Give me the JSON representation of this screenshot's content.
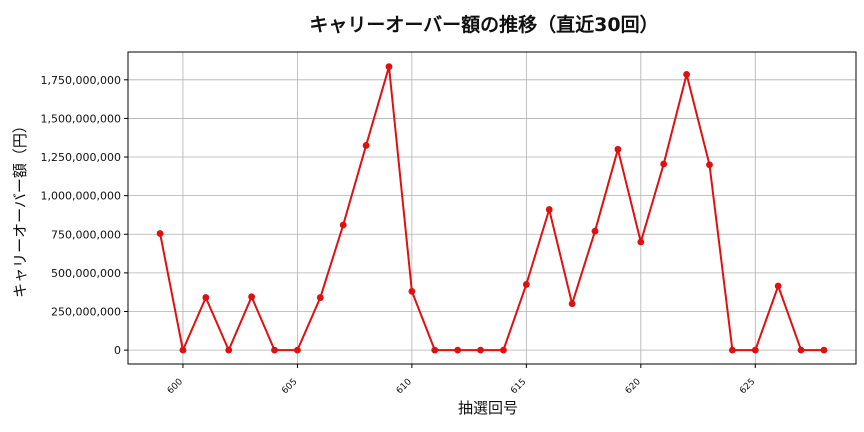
{
  "chart_data": {
    "type": "line",
    "title": "キャリーオーバー額の推移（直近30回）",
    "xlabel": "抽選回号",
    "ylabel": "キャリーオーバー額（円）",
    "x": [
      599,
      600,
      601,
      602,
      603,
      604,
      605,
      606,
      607,
      608,
      609,
      610,
      611,
      612,
      613,
      614,
      615,
      616,
      617,
      618,
      619,
      620,
      621,
      622,
      623,
      624,
      625,
      626,
      627,
      628
    ],
    "values": [
      755000000,
      0,
      340000000,
      0,
      345000000,
      0,
      0,
      340000000,
      810000000,
      1325000000,
      1835000000,
      380000000,
      0,
      0,
      0,
      0,
      425000000,
      910000000,
      300000000,
      770000000,
      1300000000,
      700000000,
      1205000000,
      1785000000,
      1200000000,
      0,
      0,
      415000000,
      0,
      0
    ],
    "xlim": [
      597.6,
      629.4
    ],
    "ylim": [
      -90000000,
      1930000000
    ],
    "xticks": [
      600,
      605,
      610,
      615,
      620,
      625
    ],
    "xtick_labels": [
      "600",
      "605",
      "610",
      "615",
      "620",
      "625"
    ],
    "yticks": [
      0,
      250000000,
      500000000,
      750000000,
      1000000000,
      1250000000,
      1500000000,
      1750000000
    ],
    "ytick_labels": [
      "0",
      "250,000,000",
      "500,000,000",
      "750,000,000",
      "1,000,000,000",
      "1,250,000,000",
      "1,500,000,000",
      "1,750,000,000"
    ],
    "grid": true,
    "color": "#e01010"
  }
}
